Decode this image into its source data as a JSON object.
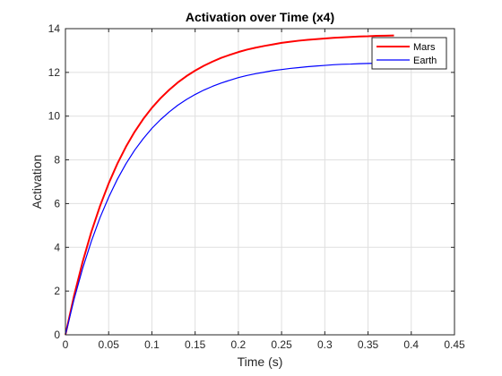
{
  "chart_data": {
    "type": "line",
    "title": "Activation over Time (x4)",
    "xlabel": "Time (s)",
    "ylabel": "Activation",
    "xlim": [
      0,
      0.45
    ],
    "ylim": [
      0,
      14
    ],
    "xticks": [
      0,
      0.05,
      0.1,
      0.15,
      0.2,
      0.25,
      0.3,
      0.35,
      0.4,
      0.45
    ],
    "xtick_labels": [
      "0",
      "0.05",
      "0.1",
      "0.15",
      "0.2",
      "0.25",
      "0.3",
      "0.35",
      "0.4",
      "0.45"
    ],
    "yticks": [
      0,
      2,
      4,
      6,
      8,
      10,
      12,
      14
    ],
    "ytick_labels": [
      "0",
      "2",
      "4",
      "6",
      "8",
      "10",
      "12",
      "14"
    ],
    "grid": true,
    "legend_position": "top-right",
    "x": [
      0,
      0.01,
      0.02,
      0.03,
      0.04,
      0.05,
      0.06,
      0.07,
      0.08,
      0.09,
      0.1,
      0.11,
      0.12,
      0.13,
      0.14,
      0.15,
      0.16,
      0.17,
      0.18,
      0.19,
      0.2,
      0.21,
      0.22,
      0.23,
      0.24,
      0.25,
      0.26,
      0.27,
      0.28,
      0.29,
      0.3,
      0.31,
      0.32,
      0.33,
      0.34,
      0.35,
      0.36,
      0.37,
      0.38
    ],
    "series": [
      {
        "name": "Mars",
        "color": "#ff0000",
        "values": [
          0,
          1.79,
          3.35,
          4.71,
          5.89,
          6.92,
          7.82,
          8.6,
          9.28,
          9.87,
          10.38,
          10.82,
          11.2,
          11.54,
          11.83,
          12.08,
          12.3,
          12.49,
          12.66,
          12.8,
          12.93,
          13.04,
          13.13,
          13.21,
          13.28,
          13.35,
          13.4,
          13.45,
          13.49,
          13.52,
          13.55,
          13.58,
          13.6,
          13.62,
          13.64,
          13.65,
          13.67,
          13.68,
          13.69
        ]
      },
      {
        "name": "Earth",
        "color": "#0000ff",
        "values": [
          0,
          1.63,
          3.05,
          4.28,
          5.36,
          6.29,
          7.11,
          7.82,
          8.44,
          8.97,
          9.44,
          9.84,
          10.19,
          10.5,
          10.76,
          10.99,
          11.19,
          11.36,
          11.51,
          11.64,
          11.76,
          11.86,
          11.94,
          12.01,
          12.08,
          12.13,
          12.18,
          12.22,
          12.26,
          12.29,
          12.32,
          12.35,
          12.37,
          12.38,
          12.4,
          12.41,
          12.42,
          12.43,
          12.44
        ]
      }
    ]
  }
}
